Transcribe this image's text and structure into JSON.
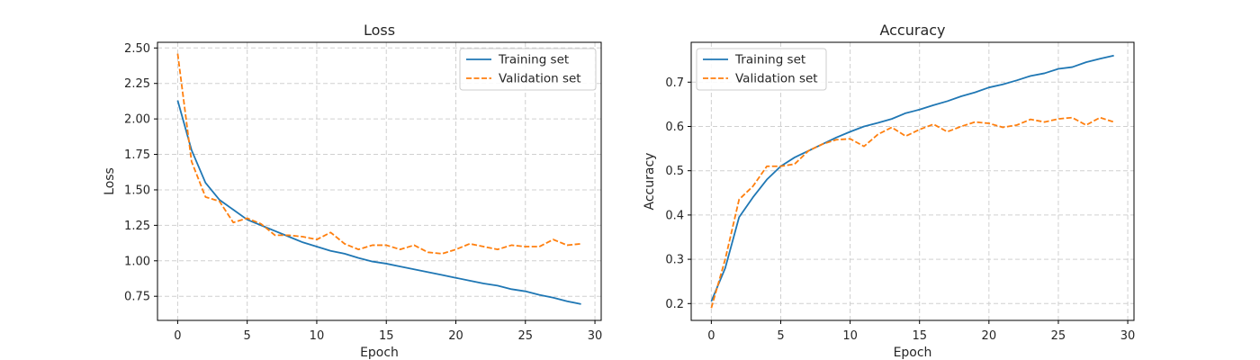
{
  "colors": {
    "training": "#1f77b4",
    "validation": "#ff7f0e",
    "grid": "#d0d0d0"
  },
  "chart_data": [
    {
      "type": "line",
      "title": "Loss",
      "xlabel": "Epoch",
      "ylabel": "Loss",
      "xlim": [
        -1.45,
        30.45
      ],
      "ylim": [
        0.58,
        2.54
      ],
      "xticks": [
        0,
        5,
        10,
        15,
        20,
        25,
        30
      ],
      "xtick_labels": [
        "0",
        "5",
        "10",
        "15",
        "20",
        "25",
        "30"
      ],
      "yticks": [
        0.75,
        1.0,
        1.25,
        1.5,
        1.75,
        2.0,
        2.25,
        2.5
      ],
      "ytick_labels": [
        "0.75",
        "1.00",
        "1.25",
        "1.50",
        "1.75",
        "2.00",
        "2.25",
        "2.50"
      ],
      "grid": true,
      "legend": "top-right",
      "x": [
        0,
        1,
        2,
        3,
        4,
        5,
        6,
        7,
        8,
        9,
        10,
        11,
        12,
        13,
        14,
        15,
        16,
        17,
        18,
        19,
        20,
        21,
        22,
        23,
        24,
        25,
        26,
        27,
        28,
        29
      ],
      "series": [
        {
          "name": "Training set",
          "style": "solid",
          "values": [
            2.13,
            1.78,
            1.55,
            1.43,
            1.36,
            1.29,
            1.25,
            1.21,
            1.17,
            1.13,
            1.1,
            1.07,
            1.05,
            1.02,
            0.995,
            0.98,
            0.96,
            0.94,
            0.92,
            0.9,
            0.88,
            0.86,
            0.84,
            0.825,
            0.8,
            0.785,
            0.76,
            0.74,
            0.715,
            0.695
          ]
        },
        {
          "name": "Validation set",
          "style": "dashed",
          "values": [
            2.46,
            1.7,
            1.45,
            1.42,
            1.27,
            1.3,
            1.26,
            1.18,
            1.18,
            1.17,
            1.15,
            1.2,
            1.12,
            1.08,
            1.11,
            1.11,
            1.08,
            1.11,
            1.06,
            1.05,
            1.08,
            1.12,
            1.1,
            1.08,
            1.11,
            1.1,
            1.1,
            1.15,
            1.11,
            1.12
          ]
        }
      ]
    },
    {
      "type": "line",
      "title": "Accuracy",
      "xlabel": "Epoch",
      "ylabel": "Accuracy",
      "xlim": [
        -1.45,
        30.45
      ],
      "ylim": [
        0.162,
        0.79
      ],
      "xticks": [
        0,
        5,
        10,
        15,
        20,
        25,
        30
      ],
      "xtick_labels": [
        "0",
        "5",
        "10",
        "15",
        "20",
        "25",
        "30"
      ],
      "yticks": [
        0.2,
        0.3,
        0.4,
        0.5,
        0.6,
        0.7
      ],
      "ytick_labels": [
        "0.2",
        "0.3",
        "0.4",
        "0.5",
        "0.6",
        "0.7"
      ],
      "grid": true,
      "legend": "top-left",
      "x": [
        0,
        1,
        2,
        3,
        4,
        5,
        6,
        7,
        8,
        9,
        10,
        11,
        12,
        13,
        14,
        15,
        16,
        17,
        18,
        19,
        20,
        21,
        22,
        23,
        24,
        25,
        26,
        27,
        28,
        29
      ],
      "series": [
        {
          "name": "Training set",
          "style": "solid",
          "values": [
            0.205,
            0.28,
            0.395,
            0.44,
            0.48,
            0.51,
            0.53,
            0.545,
            0.56,
            0.575,
            0.588,
            0.6,
            0.608,
            0.617,
            0.63,
            0.638,
            0.648,
            0.657,
            0.668,
            0.677,
            0.688,
            0.695,
            0.704,
            0.714,
            0.72,
            0.73,
            0.734,
            0.745,
            0.753,
            0.76
          ]
        },
        {
          "name": "Validation set",
          "style": "dashed",
          "values": [
            0.19,
            0.3,
            0.435,
            0.465,
            0.51,
            0.51,
            0.515,
            0.545,
            0.56,
            0.57,
            0.572,
            0.555,
            0.582,
            0.598,
            0.578,
            0.593,
            0.605,
            0.588,
            0.6,
            0.61,
            0.607,
            0.598,
            0.603,
            0.616,
            0.61,
            0.617,
            0.62,
            0.603,
            0.62,
            0.61
          ]
        }
      ]
    }
  ]
}
